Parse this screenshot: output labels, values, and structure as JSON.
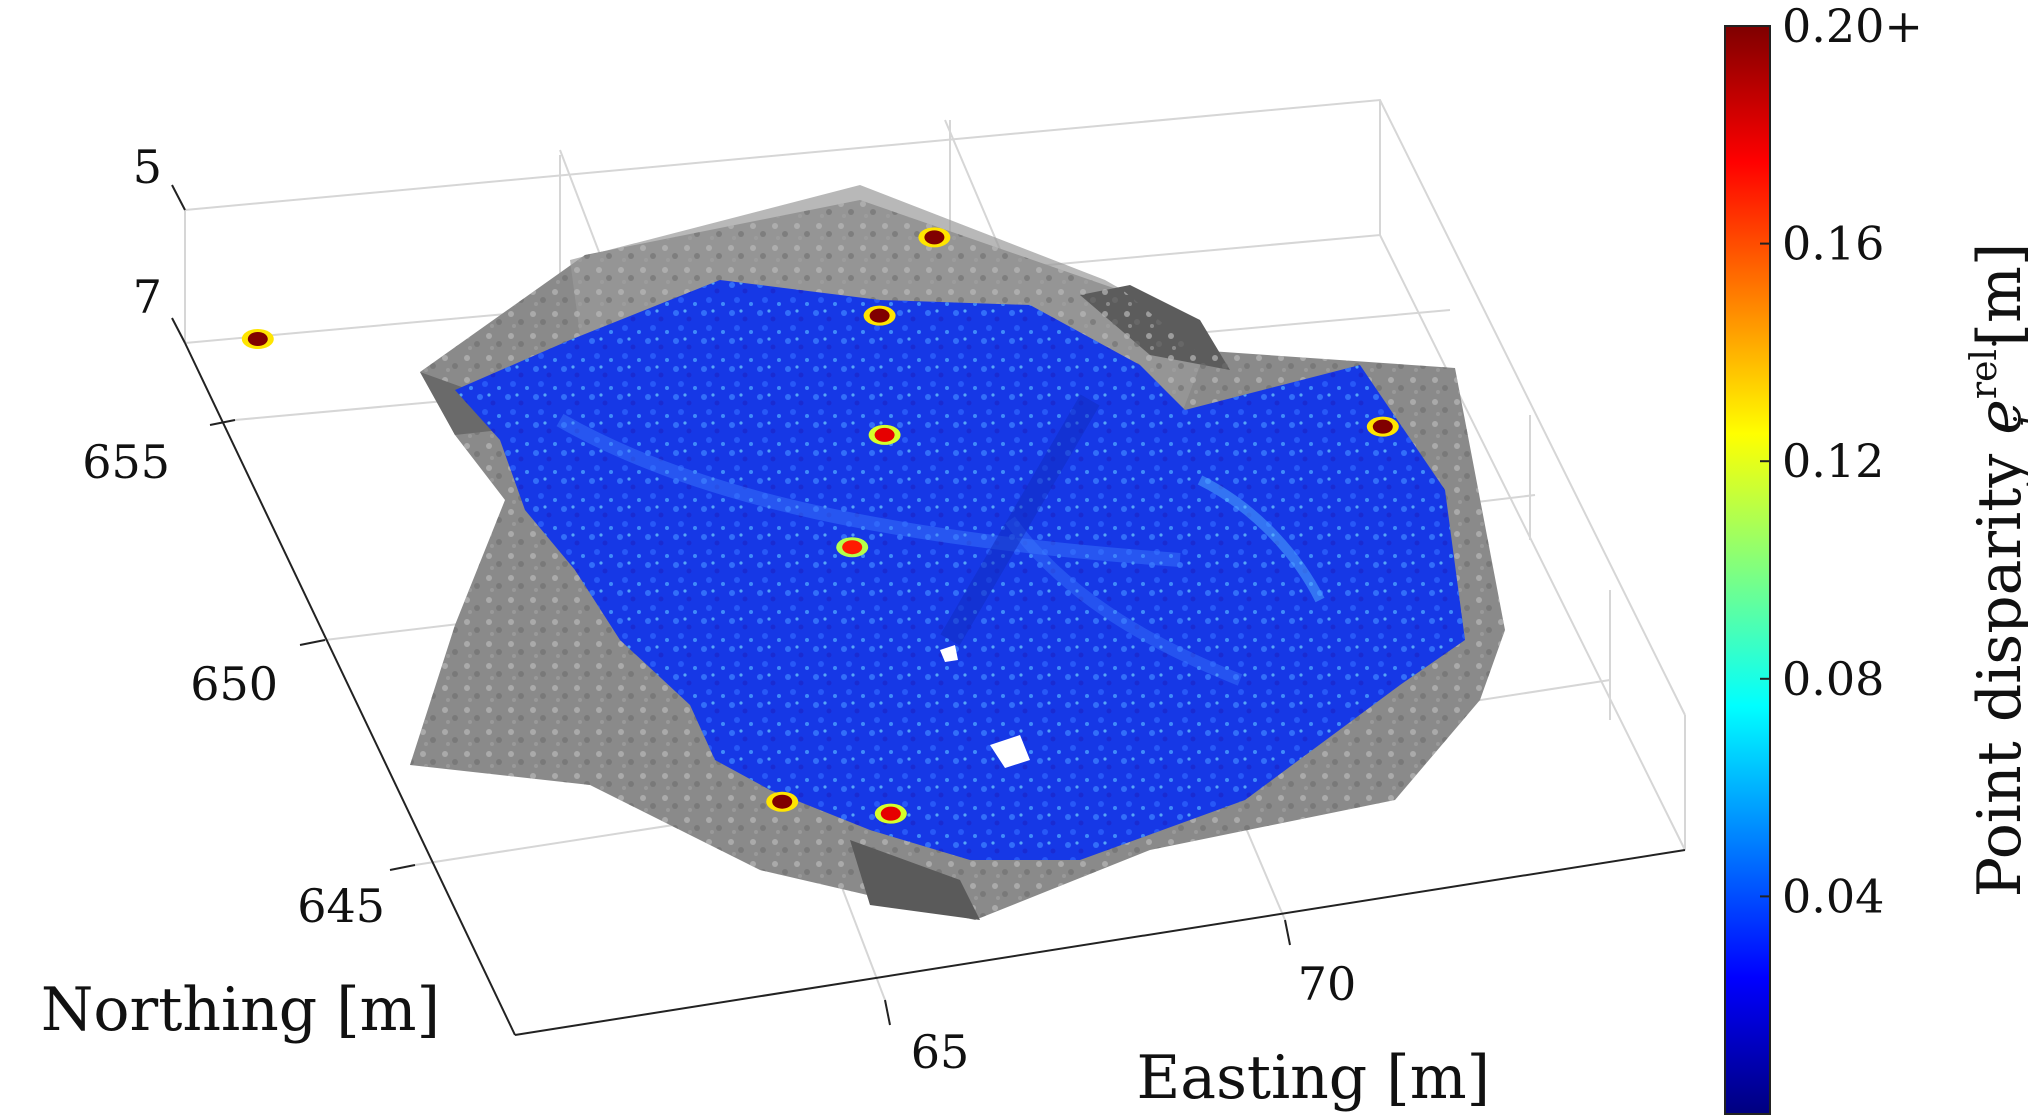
{
  "chart_data": {
    "type": "scatter3d",
    "title": "",
    "xlabel": "Easting [m]",
    "ylabel": "Northing [m]",
    "zlabel": "",
    "x_ticks": [
      "65",
      "70"
    ],
    "y_ticks": [
      "645",
      "650",
      "655"
    ],
    "z_ticks": [
      "5",
      "7"
    ],
    "view": "3-D isometric, z-axis reversed (5 above 7)",
    "grid": true,
    "colorbar": {
      "label": "Point disparity e_j^rel. [m]",
      "label_base": "Point disparity",
      "label_symbol": "e",
      "label_superscript": "rel.",
      "label_subscript": "j",
      "label_unit": "[m]",
      "colormap": "jet",
      "range": [
        0,
        0.2
      ],
      "ticks": [
        "0.04",
        "0.08",
        "0.12",
        "0.16",
        "0.20+"
      ],
      "tick_values": [
        0.04,
        0.08,
        0.12,
        0.16,
        0.2
      ]
    },
    "layers": [
      {
        "role": "reference point cloud (grayscale)",
        "color": "#8a8a8a"
      },
      {
        "role": "registered point cloud colored by disparity",
        "typical_disparity": 0.02,
        "color": "#1e3ee0"
      }
    ],
    "high_disparity_spots": [
      {
        "easting": 61.2,
        "northing": 657.4,
        "value": 0.2
      },
      {
        "easting": 69.5,
        "northing": 656.7,
        "value": 0.2
      },
      {
        "easting": 68.5,
        "northing": 655.3,
        "value": 0.2
      },
      {
        "easting": 68.0,
        "northing": 652.8,
        "value": 0.18
      },
      {
        "easting": 67.1,
        "northing": 650.6,
        "value": 0.17
      },
      {
        "easting": 73.8,
        "northing": 650.9,
        "value": 0.2
      },
      {
        "easting": 65.1,
        "northing": 645.6,
        "value": 0.2
      },
      {
        "easting": 66.3,
        "northing": 644.9,
        "value": 0.18
      }
    ]
  }
}
